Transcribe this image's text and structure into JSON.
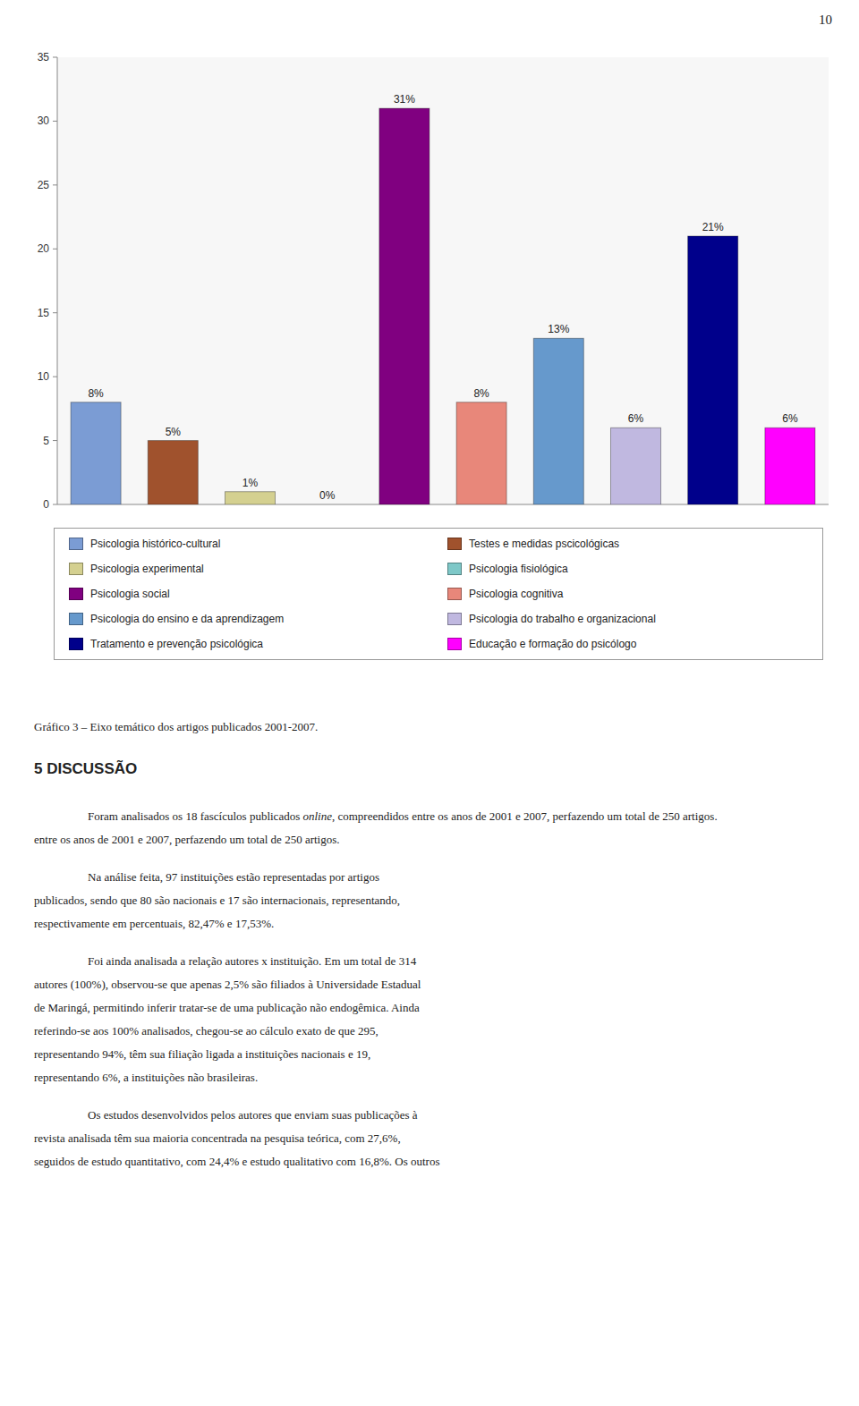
{
  "chart_data": {
    "type": "bar",
    "categories": [
      "Psicologia histórico-cultural",
      "Testes e medidas pscicológicas",
      "Psicologia experimental",
      "Psicologia fisiológica",
      "Psicologia social",
      "Psicologia cognitiva",
      "Psicologia do ensino e da aprendizagem",
      "Psicologia do trabalho e organizacional",
      "Tratamento e prevenção psicológica",
      "Educação e formação do psicólogo"
    ],
    "values": [
      8,
      5,
      1,
      0,
      31,
      8,
      13,
      6,
      21,
      6
    ],
    "value_labels": [
      "8%",
      "5%",
      "1%",
      "0%",
      "31%",
      "8%",
      "13%",
      "6%",
      "21%",
      "6%"
    ],
    "colors": [
      "#7B9CD4",
      "#A0522D",
      "#D4D090",
      "#7EC8C8",
      "#800080",
      "#E8877A",
      "#6699CC",
      "#C0B8E0",
      "#00008B",
      "#FF00FF"
    ],
    "ylim": [
      0,
      35
    ],
    "yticks": [
      0,
      5,
      10,
      15,
      20,
      25,
      30,
      35
    ],
    "data_labels": true,
    "tick_labels": "y",
    "grid": false,
    "legend": "bottom"
  },
  "page_number": "10",
  "caption": "Gráfico 3 – Eixo temático dos artigos publicados 2001-2007.",
  "section_title": "5 DISCUSSÃO",
  "paragraphs": [
    [
      [
        {
          "text": "Foram analisados os 18 fascículos publicados ",
          "style": "normal"
        },
        {
          "text": "online",
          "style": "italic"
        },
        {
          "text": ", compreendidos entre os anos de 2001 e 2007, perfazendo um total de 250 artigos.",
          "style": "normal"
        }
      ],
      "entre os anos de 2001 e 2007, perfazendo um total de 250 artigos."
    ],
    [
      "Na análise feita, 97 instituições estão representadas por artigos",
      "publicados, sendo que 80 são nacionais e 17 são internacionais, representando,",
      "respectivamente  em percentuais, 82,47% e 17,53%."
    ],
    [
      "Foi ainda analisada a relação autores x instituição. Em um total de 314",
      "autores (100%), observou-se que apenas 2,5% são filiados à Universidade Estadual",
      "de Maringá, permitindo inferir tratar-se de uma publicação não endogêmica. Ainda",
      "referindo-se aos 100% analisados, chegou-se ao cálculo exato de que 295,",
      "representando 94%, têm sua filiação ligada a instituições nacionais e 19,",
      "representando 6%, a instituições não brasileiras."
    ],
    [
      "Os estudos desenvolvidos pelos autores que enviam suas publicações à",
      "revista analisada têm sua maioria concentrada na pesquisa teórica, com 27,6%,",
      "seguidos de estudo quantitativo, com 24,4% e estudo qualitativo com 16,8%. Os outros"
    ]
  ]
}
